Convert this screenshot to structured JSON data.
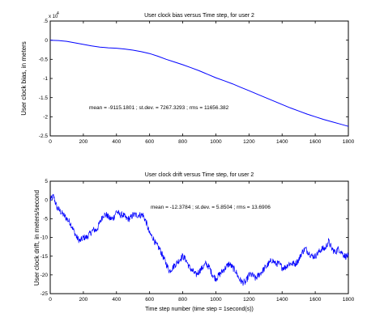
{
  "chart_data": [
    {
      "type": "line",
      "title": "User clock bias  versus  Time step, for user 2",
      "xlabel": "",
      "ylabel": "User clock bias, in meters",
      "y_exponent_label": "x 10",
      "y_exponent_power": "4",
      "xlim": [
        0,
        1800
      ],
      "ylim": [
        -2.5,
        0.5
      ],
      "xticks": [
        0,
        200,
        400,
        600,
        800,
        1000,
        1200,
        1400,
        1600,
        1800
      ],
      "yticks": [
        0.5,
        0,
        -0.5,
        -1,
        -1.5,
        -2,
        -2.5
      ],
      "ytick_labels": [
        ".5",
        "0",
        "-0.5",
        "-1",
        "-1.5",
        "-2",
        "-2.5"
      ],
      "annotation": "mean = -9115.1801 ;   st.dev. = 7267.3293 ;   rms = 11656.382",
      "series": [
        {
          "color": "#0000ff",
          "x": [
            0,
            50,
            100,
            150,
            200,
            250,
            300,
            350,
            400,
            450,
            500,
            550,
            600,
            650,
            700,
            750,
            800,
            850,
            900,
            950,
            1000,
            1050,
            1100,
            1150,
            1200,
            1250,
            1300,
            1350,
            1400,
            1450,
            1500,
            1550,
            1600,
            1650,
            1700,
            1750,
            1800
          ],
          "y": [
            0,
            -0.01,
            -0.03,
            -0.07,
            -0.11,
            -0.15,
            -0.18,
            -0.2,
            -0.21,
            -0.23,
            -0.26,
            -0.3,
            -0.35,
            -0.42,
            -0.5,
            -0.57,
            -0.64,
            -0.72,
            -0.8,
            -0.89,
            -0.98,
            -1.06,
            -1.14,
            -1.23,
            -1.32,
            -1.41,
            -1.5,
            -1.59,
            -1.68,
            -1.77,
            -1.85,
            -1.93,
            -2.0,
            -2.07,
            -2.13,
            -2.19,
            -2.25
          ]
        }
      ]
    },
    {
      "type": "line",
      "title": "User clock drift  versus  Time step, for user 2",
      "xlabel": "Time step number (time step = 1second(s))",
      "ylabel": "User clock drift, in meters/second",
      "xlim": [
        0,
        1800
      ],
      "ylim": [
        -25,
        5
      ],
      "xticks": [
        0,
        200,
        400,
        600,
        800,
        1000,
        1200,
        1400,
        1600,
        1800
      ],
      "yticks": [
        5,
        0,
        -5,
        -10,
        -15,
        -20,
        -25
      ],
      "annotation": "mean = -12.3784 ;   st.dev. = 5.8504 ;   rms = 13.6906",
      "series": [
        {
          "color": "#0000ff",
          "noisy": true,
          "x": [
            0,
            20,
            40,
            60,
            80,
            100,
            120,
            140,
            160,
            180,
            200,
            220,
            240,
            260,
            280,
            300,
            320,
            340,
            360,
            380,
            400,
            420,
            440,
            460,
            480,
            500,
            520,
            540,
            560,
            580,
            600,
            620,
            640,
            660,
            680,
            700,
            720,
            740,
            760,
            780,
            800,
            820,
            840,
            860,
            880,
            900,
            920,
            940,
            960,
            980,
            1000,
            1020,
            1040,
            1060,
            1080,
            1100,
            1120,
            1140,
            1160,
            1180,
            1200,
            1220,
            1240,
            1260,
            1280,
            1300,
            1320,
            1340,
            1360,
            1380,
            1400,
            1420,
            1440,
            1460,
            1480,
            1500,
            1520,
            1540,
            1560,
            1580,
            1600,
            1620,
            1640,
            1660,
            1680,
            1700,
            1720,
            1740,
            1760,
            1780,
            1800
          ],
          "y": [
            0,
            1,
            -2,
            -3,
            -4,
            -5,
            -6,
            -8,
            -10,
            -11,
            -10,
            -10,
            -9,
            -8,
            -8,
            -6,
            -4,
            -4,
            -5,
            -5,
            -3,
            -4,
            -4,
            -5,
            -5,
            -4,
            -4,
            -4,
            -4,
            -6,
            -9,
            -10,
            -12,
            -13,
            -15,
            -17,
            -19,
            -18,
            -17,
            -16,
            -15,
            -16,
            -18,
            -19,
            -20,
            -19,
            -18,
            -17,
            -18,
            -20,
            -21,
            -20,
            -19,
            -18,
            -17,
            -18,
            -19,
            -21,
            -22,
            -22,
            -20,
            -20,
            -21,
            -20,
            -19,
            -18,
            -17,
            -16,
            -17,
            -17,
            -18,
            -18,
            -17,
            -17,
            -17,
            -16,
            -14,
            -13,
            -14,
            -15,
            -15,
            -14,
            -13,
            -13,
            -11,
            -13,
            -14,
            -13,
            -14,
            -15,
            -15
          ]
        }
      ]
    }
  ]
}
